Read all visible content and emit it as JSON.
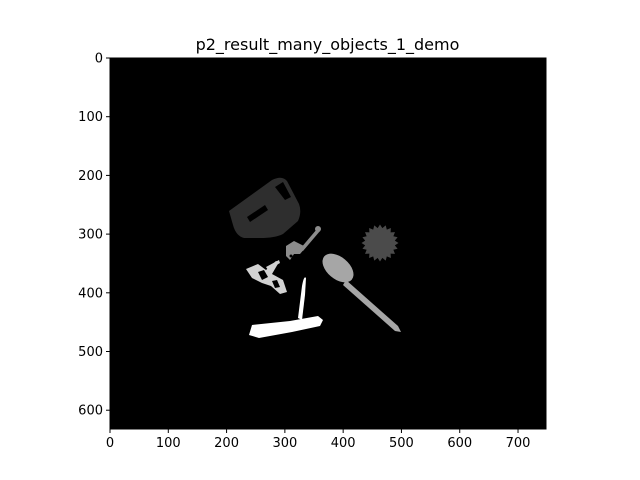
{
  "figure": {
    "title": "p2_result_many_objects_1_demo"
  },
  "axes": {
    "x_ticks": [
      "0",
      "100",
      "200",
      "300",
      "400",
      "500",
      "600",
      "700"
    ],
    "y_ticks": [
      "0",
      "100",
      "200",
      "300",
      "400",
      "500",
      "600"
    ],
    "x_range": [
      0,
      748
    ],
    "y_range": [
      0,
      632
    ],
    "y_inverted": true
  },
  "image": {
    "background": "black",
    "objects": [
      {
        "name": "dark-gray-box-object",
        "shade": "#2e2e2e"
      },
      {
        "name": "medium-gray-key-object",
        "shade": "#8c8c8c"
      },
      {
        "name": "dark-gray-gear-object",
        "shade": "#4b4b4b"
      },
      {
        "name": "light-gray-spoon-object",
        "shade": "#a6a6a6"
      },
      {
        "name": "very-light-gray-scissors-object",
        "shade": "#d2d2d2"
      },
      {
        "name": "white-knife-object",
        "shade": "#ffffff"
      }
    ]
  }
}
